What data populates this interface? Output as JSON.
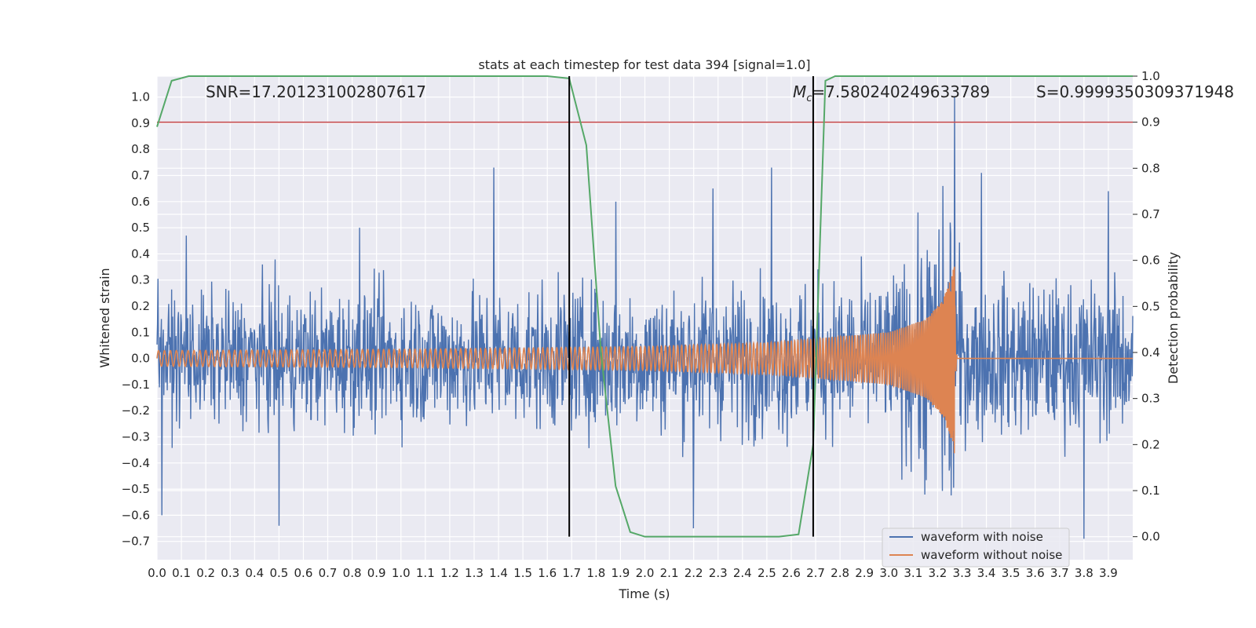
{
  "chart_data": {
    "type": "line",
    "title": "stats at each timestep for test data 394 [signal=1.0]",
    "xlabel": "Time (s)",
    "ylabel_left": "Whitened strain",
    "ylabel_right": "Detection probability",
    "xlim": [
      0.0,
      4.0
    ],
    "ylim_left": [
      -0.77,
      1.08
    ],
    "ylim_right": [
      -0.05,
      1.0
    ],
    "x_ticks": [
      "0.0",
      "0.1",
      "0.2",
      "0.3",
      "0.4",
      "0.5",
      "0.6",
      "0.7",
      "0.8",
      "0.9",
      "1.0",
      "1.1",
      "1.2",
      "1.3",
      "1.4",
      "1.5",
      "1.6",
      "1.7",
      "1.8",
      "1.9",
      "2.0",
      "2.1",
      "2.2",
      "2.3",
      "2.4",
      "2.5",
      "2.6",
      "2.7",
      "2.8",
      "2.9",
      "3.0",
      "3.1",
      "3.2",
      "3.3",
      "3.4",
      "3.5",
      "3.6",
      "3.7",
      "3.8",
      "3.9"
    ],
    "y_left_ticks": [
      "1.0",
      "0.9",
      "0.8",
      "0.7",
      "0.6",
      "0.5",
      "0.4",
      "0.3",
      "0.2",
      "0.1",
      "0.0",
      "−0.1",
      "−0.2",
      "−0.3",
      "−0.4",
      "−0.5",
      "−0.6",
      "−0.7"
    ],
    "y_right_ticks": [
      "1.0",
      "0.9",
      "0.8",
      "0.7",
      "0.6",
      "0.5",
      "0.4",
      "0.3",
      "0.2",
      "0.1",
      "0.0"
    ],
    "grid": true,
    "legend_position": "lower-right",
    "annotations": {
      "snr": "SNR=17.201231002807617",
      "mc_symbol": "M",
      "mc_sub": "c",
      "mc_value": "=7.580240249633789",
      "s": "S=0.9999350309371948"
    },
    "colors": {
      "noise": "#4c72b0",
      "clean": "#dd8452",
      "probability": "#55a868",
      "threshold": "#c44e52",
      "markers": "#000000",
      "plot_bg": "#eaeaf2",
      "grid": "#ffffff"
    },
    "series": [
      {
        "name": "waveform with noise",
        "kind": "noisy whitened strain",
        "envelope_x": [
          0.0,
          0.5,
          1.0,
          1.5,
          2.0,
          2.5,
          3.0,
          3.27,
          3.3,
          3.5,
          4.0
        ],
        "envelope_y": [
          0.35,
          0.4,
          0.4,
          0.42,
          0.42,
          0.45,
          0.45,
          1.0,
          0.45,
          0.45,
          0.45
        ],
        "peaks": [
          {
            "x": 0.02,
            "y": -0.6
          },
          {
            "x": 0.12,
            "y": 0.47
          },
          {
            "x": 0.5,
            "y": -0.64
          },
          {
            "x": 0.83,
            "y": 0.5
          },
          {
            "x": 1.38,
            "y": 0.73
          },
          {
            "x": 1.88,
            "y": 0.6
          },
          {
            "x": 2.2,
            "y": -0.65
          },
          {
            "x": 2.28,
            "y": 0.65
          },
          {
            "x": 2.52,
            "y": 0.73
          },
          {
            "x": 3.27,
            "y": 1.0
          },
          {
            "x": 3.38,
            "y": 0.71
          },
          {
            "x": 3.8,
            "y": -0.69
          },
          {
            "x": 3.9,
            "y": 0.64
          }
        ]
      },
      {
        "name": "waveform without noise",
        "kind": "chirp",
        "t_merge": 3.27,
        "amplitude_x": [
          0.0,
          1.0,
          2.0,
          2.5,
          3.0,
          3.15,
          3.22,
          3.26,
          3.27,
          3.28
        ],
        "amplitude_y": [
          0.03,
          0.035,
          0.045,
          0.06,
          0.1,
          0.15,
          0.22,
          0.32,
          0.37,
          0.0
        ]
      },
      {
        "name": "detection probability",
        "axis": "right",
        "x": [
          0.0,
          0.06,
          0.13,
          1.6,
          1.69,
          1.76,
          1.82,
          1.88,
          1.94,
          2.0,
          2.55,
          2.63,
          2.69,
          2.74,
          2.78,
          3.0,
          4.0
        ],
        "y": [
          0.89,
          0.99,
          1.0,
          1.0,
          0.995,
          0.85,
          0.4,
          0.11,
          0.01,
          0.0,
          0.0,
          0.005,
          0.2,
          0.99,
          1.0,
          1.0,
          1.0
        ]
      }
    ],
    "threshold_line": {
      "axis": "right",
      "y": 0.9
    },
    "vertical_markers": [
      {
        "x": 1.69,
        "y_top": 1.0,
        "y_bottom": 0.0
      },
      {
        "x": 2.69,
        "y_top": 1.0,
        "y_bottom": 0.0
      }
    ]
  }
}
